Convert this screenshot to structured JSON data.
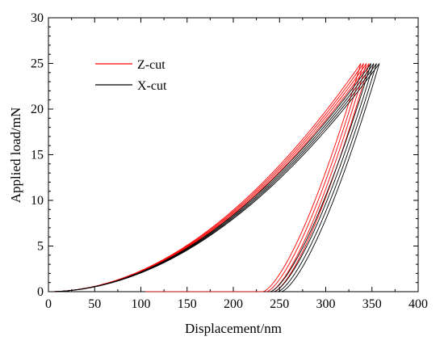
{
  "chart_data": {
    "type": "line",
    "title": "",
    "xlabel": "Displacement/nm",
    "ylabel": "Applied load/mN",
    "xlim": [
      0,
      400
    ],
    "ylim": [
      0,
      30
    ],
    "xticks": [
      "0",
      "50",
      "100",
      "150",
      "200",
      "250",
      "300",
      "350",
      "400"
    ],
    "yticks": [
      "0",
      "5",
      "10",
      "15",
      "20",
      "25",
      "30"
    ],
    "grid": false,
    "legend": "top-left",
    "series": [
      {
        "name": "Z-cut",
        "color": "#ff0000",
        "curves": [
          {
            "loading": {
              "x_max": 338,
              "k": 0.000262,
              "n": 1.96
            },
            "unloading": {
              "x_start": 232,
              "x_end": 338
            }
          },
          {
            "loading": {
              "x_max": 341,
              "k": 0.000262,
              "n": 1.96
            },
            "unloading": {
              "x_start": 236,
              "x_end": 341
            }
          },
          {
            "loading": {
              "x_max": 344,
              "k": 0.000262,
              "n": 1.96
            },
            "unloading": {
              "x_start": 240,
              "x_end": 344
            }
          },
          {
            "loading": {
              "x_max": 347,
              "k": 0.000262,
              "n": 1.96
            },
            "unloading": {
              "x_start": 244,
              "x_end": 347
            }
          }
        ]
      },
      {
        "name": "X-cut",
        "color": "#000000",
        "curves": [
          {
            "loading": {
              "x_max": 349,
              "k": 0.000262,
              "n": 1.96
            },
            "unloading": {
              "x_start": 240,
              "x_end": 349
            }
          },
          {
            "loading": {
              "x_max": 352,
              "k": 0.000262,
              "n": 1.96
            },
            "unloading": {
              "x_start": 244,
              "x_end": 352
            }
          },
          {
            "loading": {
              "x_max": 355,
              "k": 0.000262,
              "n": 1.96
            },
            "unloading": {
              "x_start": 248,
              "x_end": 355
            }
          },
          {
            "loading": {
              "x_max": 358,
              "k": 0.000262,
              "n": 1.96
            },
            "unloading": {
              "x_start": 252,
              "x_end": 358
            }
          }
        ]
      }
    ],
    "peak_load": 25
  }
}
